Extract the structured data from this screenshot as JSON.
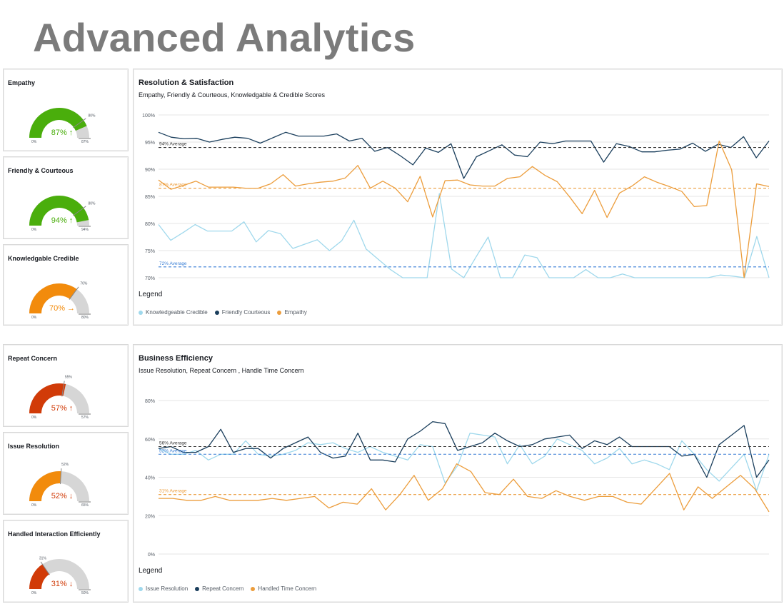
{
  "page": {
    "title": "Advanced Analytics"
  },
  "colors": {
    "green": "#4aae0c",
    "orange": "#f28b0c",
    "red": "#d13b08",
    "gray": "#d6d6d6",
    "light_blue": "#9fd8ec",
    "navy": "#1a3e5c",
    "chart_orange": "#ec9d3c",
    "avg_blue": "#3a7fd6"
  },
  "gauges": [
    {
      "title": "Empathy",
      "value": 87,
      "value_label": "87%",
      "arrow": "↑",
      "color": "#4aae0c",
      "text_color": "#4aae0c",
      "target": 80,
      "target_label": "80%",
      "min_label": "0%",
      "max_label": "87%"
    },
    {
      "title": "Friendly & Courteous",
      "value": 94,
      "value_label": "94%",
      "arrow": "↑",
      "color": "#4aae0c",
      "text_color": "#4aae0c",
      "target": 80,
      "target_label": "80%",
      "min_label": "0%",
      "max_label": "94%"
    },
    {
      "title": "Knowledgable Credible",
      "value": 70,
      "value_label": "70%",
      "arrow": "→",
      "color": "#f28b0c",
      "text_color": "#f28b0c",
      "target": 70,
      "target_label": "70%",
      "min_label": "0%",
      "max_label": "80%"
    },
    {
      "title": "Repeat Concern",
      "value": 57,
      "value_label": "57%",
      "arrow": "↑",
      "color": "#d13b08",
      "text_color": "#d13b08",
      "target": 55,
      "target_label": "55%",
      "min_label": "0%",
      "max_label": "57%"
    },
    {
      "title": "Issue Resolution",
      "value": 52,
      "value_label": "52%",
      "arrow": "↓",
      "color": "#f28b0c",
      "text_color": "#d13b08",
      "target": 52,
      "target_label": "52%",
      "min_label": "0%",
      "max_label": "65%"
    },
    {
      "title": "Handled Interaction Efficiently",
      "value": 31,
      "value_label": "31%",
      "arrow": "↓",
      "color": "#d13b08",
      "text_color": "#d13b08",
      "target": 31,
      "target_label": "31%",
      "min_label": "0%",
      "max_label": "50%"
    }
  ],
  "chart_data": [
    {
      "type": "line",
      "title": "Resolution & Satisfaction",
      "subtitle": "Empathy, Friendly & Courteous, Knowledgable & Credible Scores",
      "legend_title": "Legend",
      "ylim": [
        70,
        100
      ],
      "yticks": [
        70,
        75,
        80,
        85,
        90,
        95,
        100
      ],
      "ytick_labels": [
        "70%",
        "75%",
        "80%",
        "85%",
        "90%",
        "95%",
        "100%"
      ],
      "series": [
        {
          "name": "Knowledgeable Credible",
          "color": "#9fd8ec",
          "average": 72,
          "average_label": "72% Average",
          "average_color": "#3a7fd6",
          "values": [
            79.8,
            76.9,
            78.3,
            79.8,
            78.6,
            78.6,
            78.6,
            80.3,
            76.6,
            78.7,
            78.1,
            75.4,
            76.2,
            77,
            75,
            76.8,
            80.6,
            75.3,
            73.4,
            71.5,
            70,
            70,
            70,
            85.5,
            71.6,
            70,
            73.8,
            77.5,
            70,
            70,
            74.2,
            73.7,
            70,
            70,
            70,
            71.5,
            70,
            70,
            70.7,
            70,
            70,
            70,
            70,
            70,
            70,
            70,
            70.5,
            70.3,
            70,
            77.6,
            70
          ]
        },
        {
          "name": "Friendly Courteous",
          "color": "#1a3e5c",
          "average": 94,
          "average_label": "94% Average",
          "average_color": "#333333",
          "values": [
            96.8,
            95.9,
            95.6,
            95.7,
            95,
            95.5,
            95.9,
            95.7,
            94.8,
            95.8,
            96.8,
            96.1,
            96.1,
            96.1,
            96.5,
            95.2,
            95.7,
            93.3,
            94,
            92.5,
            90.8,
            93.9,
            93.1,
            94.7,
            88.3,
            92.3,
            93.4,
            94.5,
            92.6,
            92.3,
            95,
            94.7,
            95.2,
            95.2,
            95.2,
            91.3,
            94.7,
            94.2,
            93.2,
            93.2,
            93.5,
            93.7,
            94.8,
            93.3,
            94.6,
            94,
            96,
            92.1,
            95.2
          ]
        },
        {
          "name": "Empathy",
          "color": "#ec9d3c",
          "average": 86.5,
          "average_label": "87% Average",
          "average_color": "#ec9d3c",
          "values": [
            88,
            86.3,
            87,
            87.8,
            86.7,
            86.7,
            86.7,
            86.5,
            86.5,
            87.3,
            89,
            86.9,
            87.3,
            87.6,
            87.8,
            88.4,
            90.7,
            86.5,
            87.8,
            86.5,
            84,
            88.7,
            81.2,
            87.9,
            88,
            87.1,
            86.9,
            86.9,
            88.3,
            88.6,
            90.5,
            88.9,
            87.7,
            84.9,
            81.8,
            86.1,
            81.1,
            85.6,
            86.9,
            88.6,
            87.6,
            86.8,
            85.9,
            83.1,
            83.3,
            95.2,
            89.9,
            70,
            87.3,
            86.8
          ]
        }
      ]
    },
    {
      "type": "line",
      "title": "Business Efficiency",
      "subtitle": "Issue Resolution, Repeat Concern , Handle Time Concern",
      "legend_title": "Legend",
      "ylim": [
        0,
        80
      ],
      "yticks": [
        0,
        20,
        40,
        60,
        80
      ],
      "ytick_labels": [
        "0%",
        "20%",
        "40%",
        "60%",
        "80%"
      ],
      "series": [
        {
          "name": "Issue Resolution",
          "color": "#9fd8ec",
          "average": 52,
          "average_label": "52% Average",
          "average_color": "#3a7fd6",
          "values": [
            55,
            52,
            52,
            54,
            49,
            52,
            52,
            59,
            52,
            51,
            52,
            54,
            58,
            57,
            58,
            55,
            53,
            56,
            53,
            51,
            49,
            57,
            56,
            37,
            46,
            63,
            62,
            61,
            47,
            57,
            47,
            51,
            60,
            57,
            54,
            47,
            50,
            55,
            47,
            49,
            47,
            44,
            59,
            52,
            44,
            38,
            45,
            52,
            33,
            52
          ]
        },
        {
          "name": "Repeat Concern",
          "color": "#1a3e5c",
          "average": 56,
          "average_label": "56% Average",
          "average_color": "#333333",
          "values": [
            55,
            56,
            53,
            53,
            56,
            65,
            53,
            55,
            55,
            50,
            55,
            58,
            61,
            53,
            50,
            51,
            63,
            49,
            49,
            48,
            60,
            64,
            69,
            68,
            54,
            56,
            58,
            63,
            59,
            56,
            57,
            60,
            61,
            62,
            55,
            59,
            57,
            61,
            56,
            56,
            56,
            56,
            51,
            52,
            40,
            57,
            62,
            67,
            40,
            49
          ]
        },
        {
          "name": "Handled Time Concern",
          "color": "#ec9d3c",
          "average": 31,
          "average_label": "31% Average",
          "average_color": "#ec9d3c",
          "values": [
            29,
            29,
            28,
            28,
            30,
            28,
            28,
            28,
            29,
            28,
            29,
            30,
            24,
            27,
            26,
            34,
            23,
            31,
            41,
            28,
            34,
            47,
            43,
            32,
            31,
            39,
            30,
            29,
            33,
            30,
            28,
            30,
            30,
            27,
            26,
            34,
            42,
            23,
            35,
            29,
            35,
            41,
            34,
            22
          ]
        }
      ]
    }
  ]
}
